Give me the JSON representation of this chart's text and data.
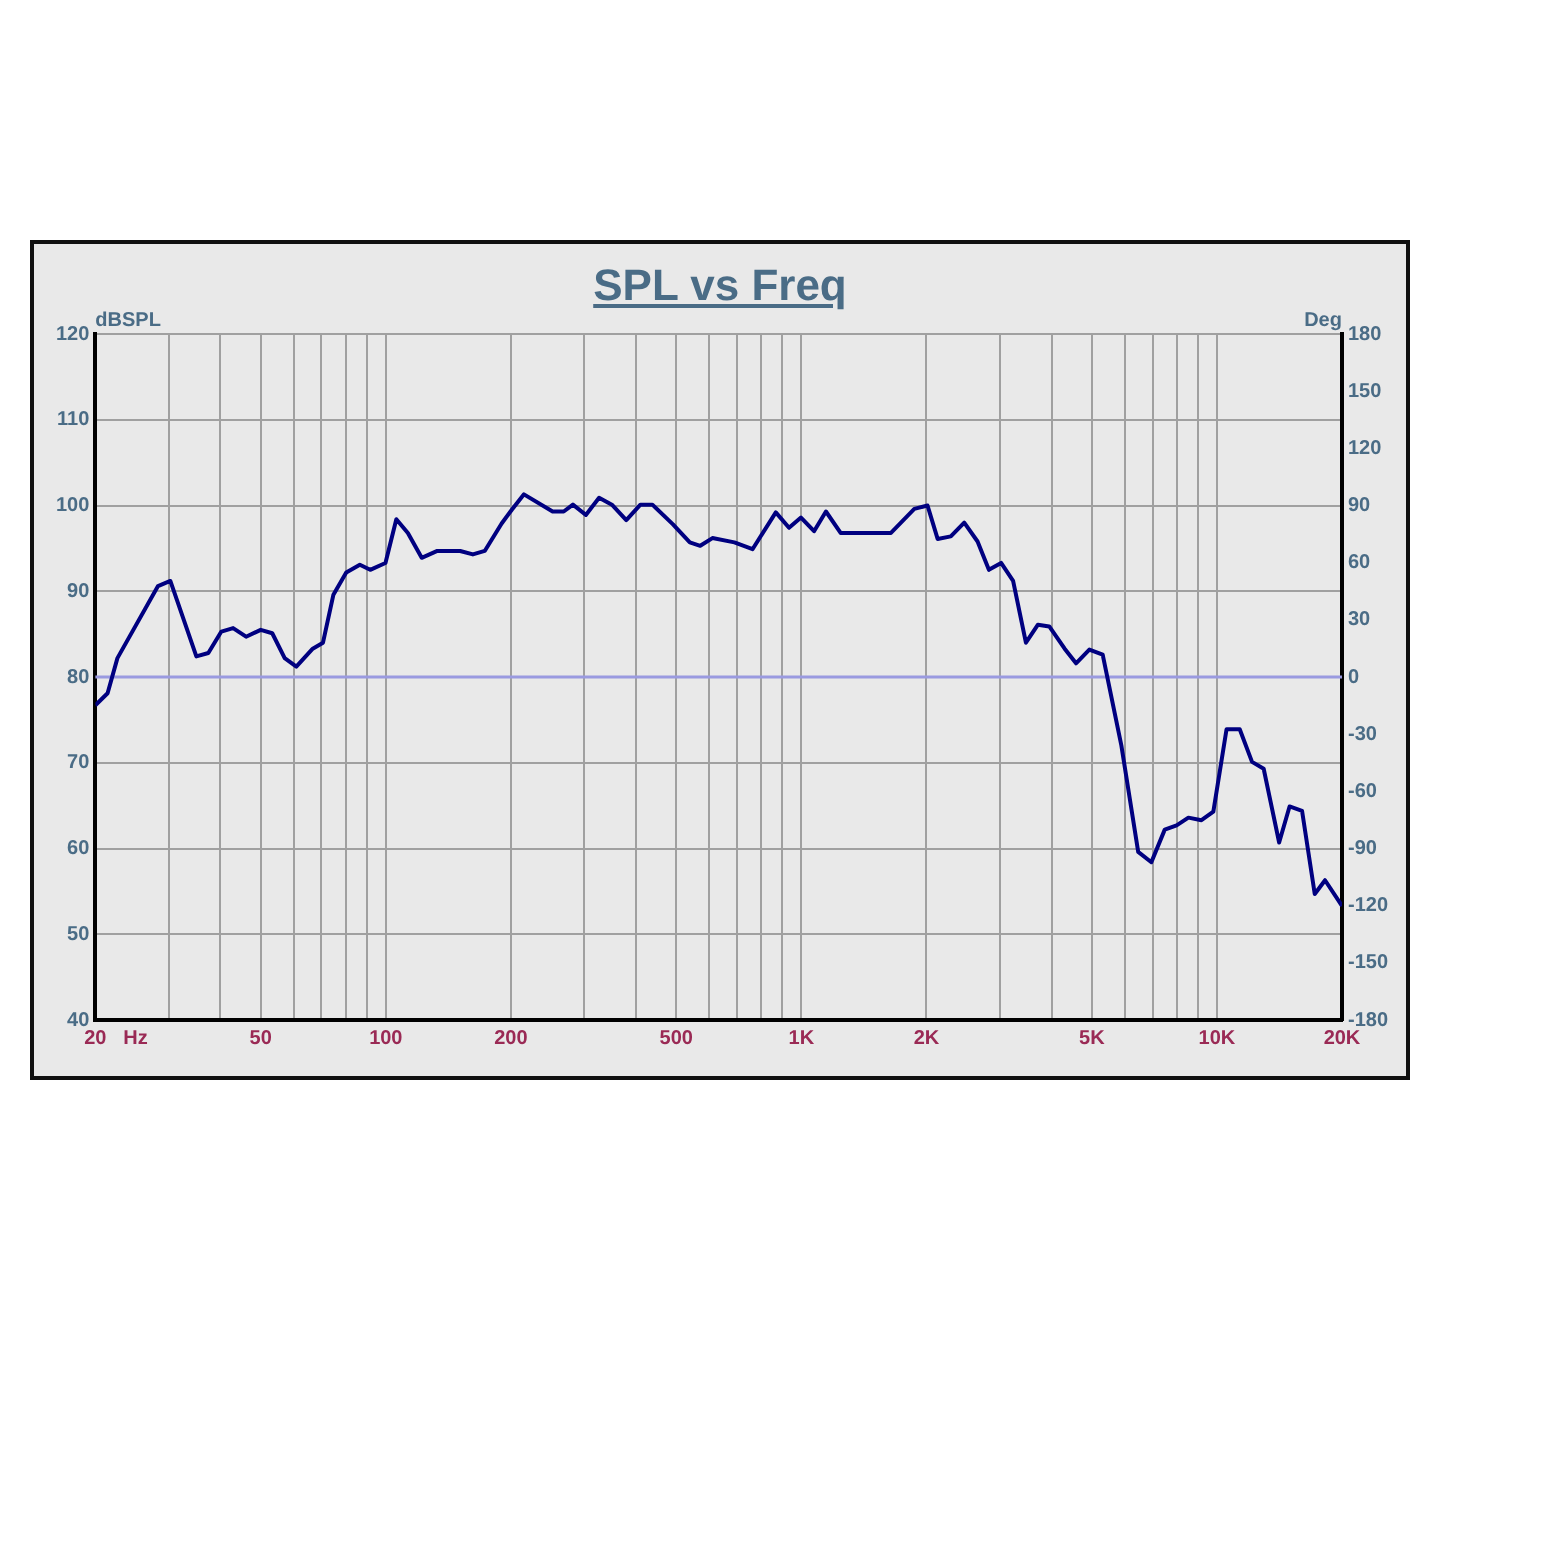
{
  "chart_data": {
    "type": "line",
    "title": "SPL vs Freq",
    "xlabel": "Hz",
    "ylabel": "dBSPL",
    "y2label": "Deg",
    "log": "x",
    "grid": true,
    "legend": false,
    "marker": "none",
    "line_style": "solid",
    "xlim": [
      20,
      20000
    ],
    "xticks": [
      {
        "value": 20,
        "label": "20"
      },
      {
        "value": 30,
        "label": null
      },
      {
        "value": 40,
        "label": null
      },
      {
        "value": 50,
        "label": "50"
      },
      {
        "value": 60,
        "label": null
      },
      {
        "value": 70,
        "label": null
      },
      {
        "value": 80,
        "label": null
      },
      {
        "value": 90,
        "label": null
      },
      {
        "value": 100,
        "label": "100"
      },
      {
        "value": 200,
        "label": "200"
      },
      {
        "value": 300,
        "label": null
      },
      {
        "value": 400,
        "label": null
      },
      {
        "value": 500,
        "label": "500"
      },
      {
        "value": 600,
        "label": null
      },
      {
        "value": 700,
        "label": null
      },
      {
        "value": 800,
        "label": null
      },
      {
        "value": 900,
        "label": null
      },
      {
        "value": 1000,
        "label": "1K"
      },
      {
        "value": 2000,
        "label": "2K"
      },
      {
        "value": 3000,
        "label": null
      },
      {
        "value": 4000,
        "label": null
      },
      {
        "value": 5000,
        "label": "5K"
      },
      {
        "value": 6000,
        "label": null
      },
      {
        "value": 7000,
        "label": null
      },
      {
        "value": 8000,
        "label": null
      },
      {
        "value": 9000,
        "label": null
      },
      {
        "value": 10000,
        "label": "10K"
      },
      {
        "value": 20000,
        "label": "20K"
      }
    ],
    "ylim": [
      40,
      120
    ],
    "yticks": [
      40,
      50,
      60,
      70,
      80,
      90,
      100,
      110,
      120
    ],
    "y2lim": [
      -180,
      180
    ],
    "y2ticks": [
      -180,
      -150,
      -120,
      -90,
      -60,
      -30,
      0,
      30,
      60,
      90,
      120,
      150,
      180
    ],
    "ref_lines": [
      {
        "axis": "y",
        "value": 80,
        "color": "#9a9ae0"
      }
    ],
    "series": [
      {
        "color": "#000080",
        "x": [
          20,
          21.4,
          22.6,
          28.3,
          30.3,
          35,
          37.4,
          40.2,
          42.9,
          46.1,
          50,
          53.3,
          57.1,
          60.9,
          66.7,
          70.6,
          74.8,
          80.3,
          86.6,
          91.7,
          99.8,
          106,
          113,
          122,
          133,
          151,
          162,
          173,
          190,
          201,
          215,
          252,
          268,
          282,
          303,
          326,
          350,
          379,
          410,
          438,
          491,
          539,
          571,
          611,
          690,
          763,
          868,
          934,
          998,
          1073,
          1146,
          1243,
          1643,
          1870,
          2012,
          2128,
          2289,
          2466,
          2655,
          2827,
          3025,
          3233,
          3471,
          3710,
          3950,
          4302,
          4582,
          4933,
          5311,
          5891,
          6466,
          6955,
          7491,
          8000,
          8540,
          9180,
          9806,
          10550,
          11350,
          12150,
          12960,
          14120,
          14960,
          16030,
          17200,
          18210,
          20000
        ],
        "values": [
          76.7,
          78.1,
          82.2,
          90.6,
          91.2,
          82.4,
          82.8,
          85.3,
          85.7,
          84.7,
          85.5,
          85.1,
          82.2,
          81.2,
          83.3,
          84,
          89.6,
          92.2,
          93.1,
          92.5,
          93.3,
          98.4,
          96.8,
          93.9,
          94.7,
          94.7,
          94.3,
          94.7,
          97.9,
          99.5,
          101.3,
          99.3,
          99.3,
          100.1,
          98.9,
          100.9,
          100.1,
          98.3,
          100.1,
          100.1,
          97.8,
          95.7,
          95.3,
          96.2,
          95.7,
          94.9,
          99.2,
          97.4,
          98.6,
          97,
          99.3,
          96.8,
          96.8,
          99.6,
          100,
          96.1,
          96.4,
          98,
          95.8,
          92.5,
          93.3,
          91.2,
          84,
          86.1,
          85.9,
          83.3,
          81.6,
          83.2,
          82.6,
          72,
          59.6,
          58.4,
          62.2,
          62.7,
          63.6,
          63.3,
          64.3,
          73.9,
          73.9,
          70.1,
          69.3,
          60.7,
          64.9,
          64.4,
          54.7,
          56.3,
          53.3
        ]
      }
    ]
  }
}
